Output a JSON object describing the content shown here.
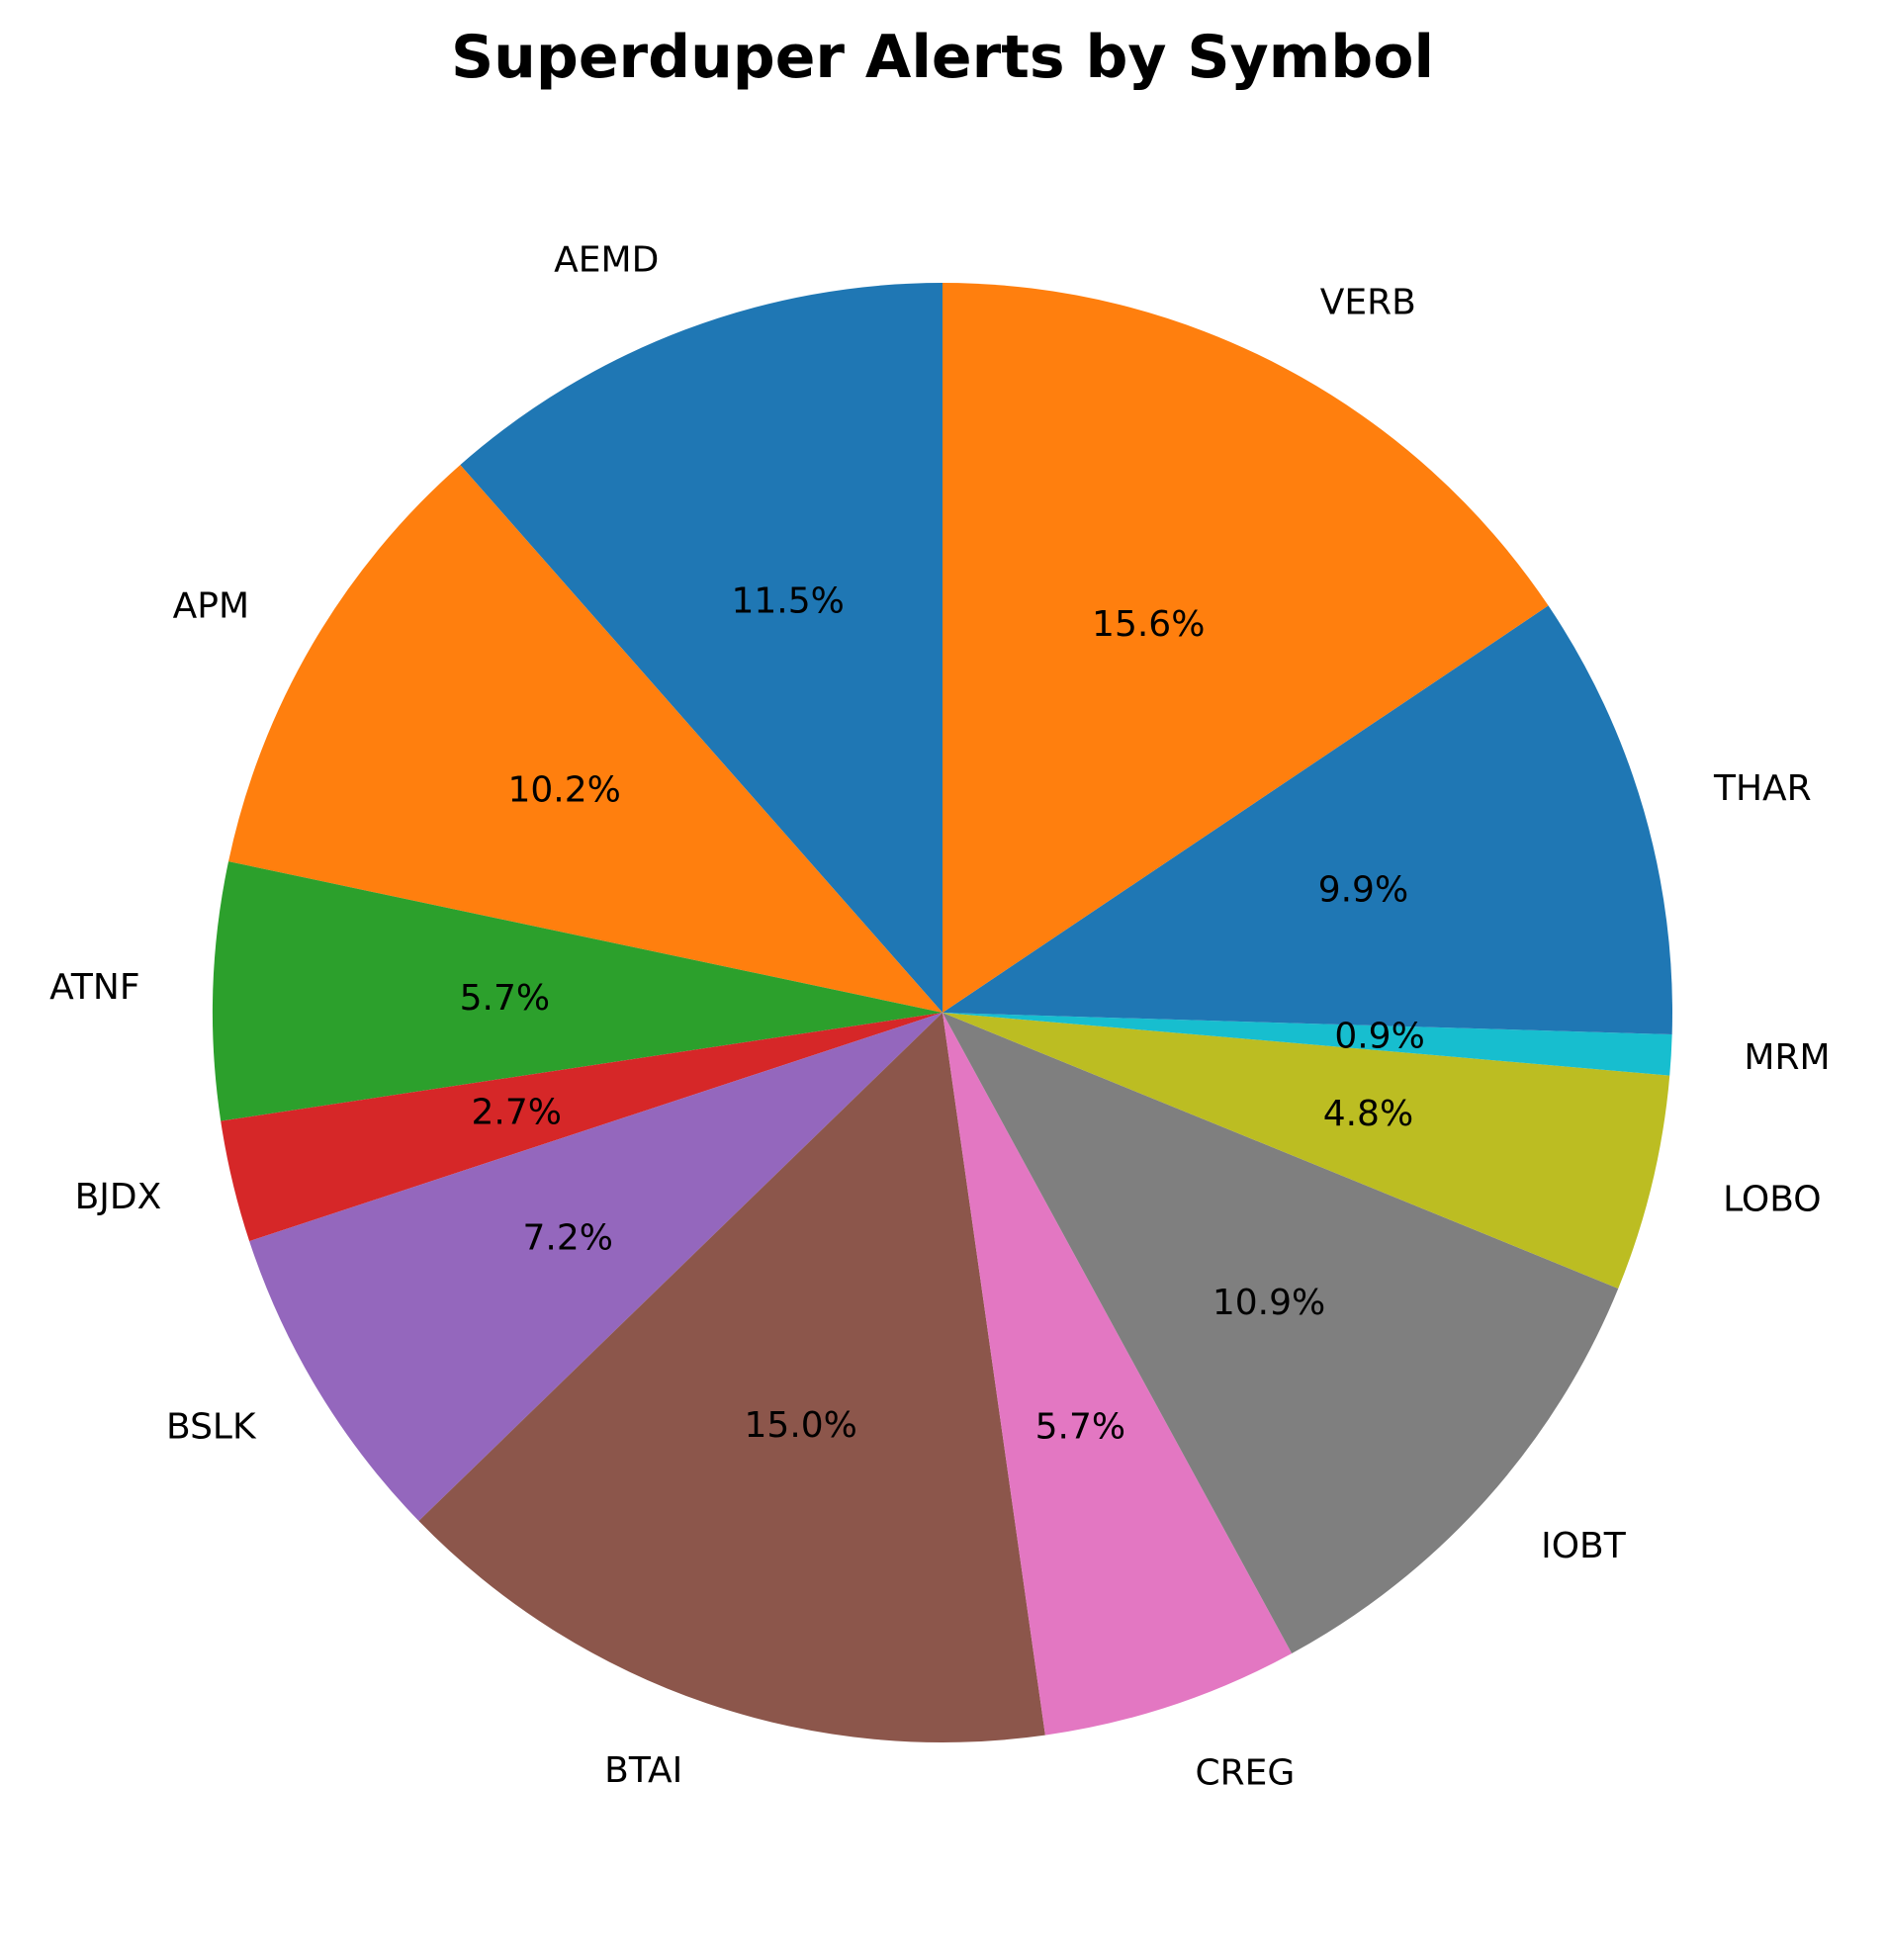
{
  "chart_data": {
    "type": "pie",
    "title": "Superduper Alerts by Symbol",
    "start_angle_deg": 90,
    "direction": "counterclockwise",
    "slices": [
      {
        "label": "AEMD",
        "value": 11.5,
        "pct_text": "11.5%",
        "color": "#1f77b4"
      },
      {
        "label": "APM",
        "value": 10.2,
        "pct_text": "10.2%",
        "color": "#ff7f0e"
      },
      {
        "label": "ATNF",
        "value": 5.7,
        "pct_text": "5.7%",
        "color": "#2ca02c"
      },
      {
        "label": "BJDX",
        "value": 2.7,
        "pct_text": "2.7%",
        "color": "#d62728"
      },
      {
        "label": "BSLK",
        "value": 7.2,
        "pct_text": "7.2%",
        "color": "#9467bd"
      },
      {
        "label": "BTAI",
        "value": 15.0,
        "pct_text": "15.0%",
        "color": "#8c564b"
      },
      {
        "label": "CREG",
        "value": 5.7,
        "pct_text": "5.7%",
        "color": "#e377c2"
      },
      {
        "label": "IOBT",
        "value": 10.9,
        "pct_text": "10.9%",
        "color": "#7f7f7f"
      },
      {
        "label": "LOBO",
        "value": 4.8,
        "pct_text": "4.8%",
        "color": "#bcbd22"
      },
      {
        "label": "MRM",
        "value": 0.9,
        "pct_text": "0.9%",
        "color": "#17becf"
      },
      {
        "label": "THAR",
        "value": 9.9,
        "pct_text": "9.9%",
        "color": "#1f77b4"
      },
      {
        "label": "VERB",
        "value": 15.6,
        "pct_text": "15.6%",
        "color": "#ff7f0e"
      }
    ]
  }
}
